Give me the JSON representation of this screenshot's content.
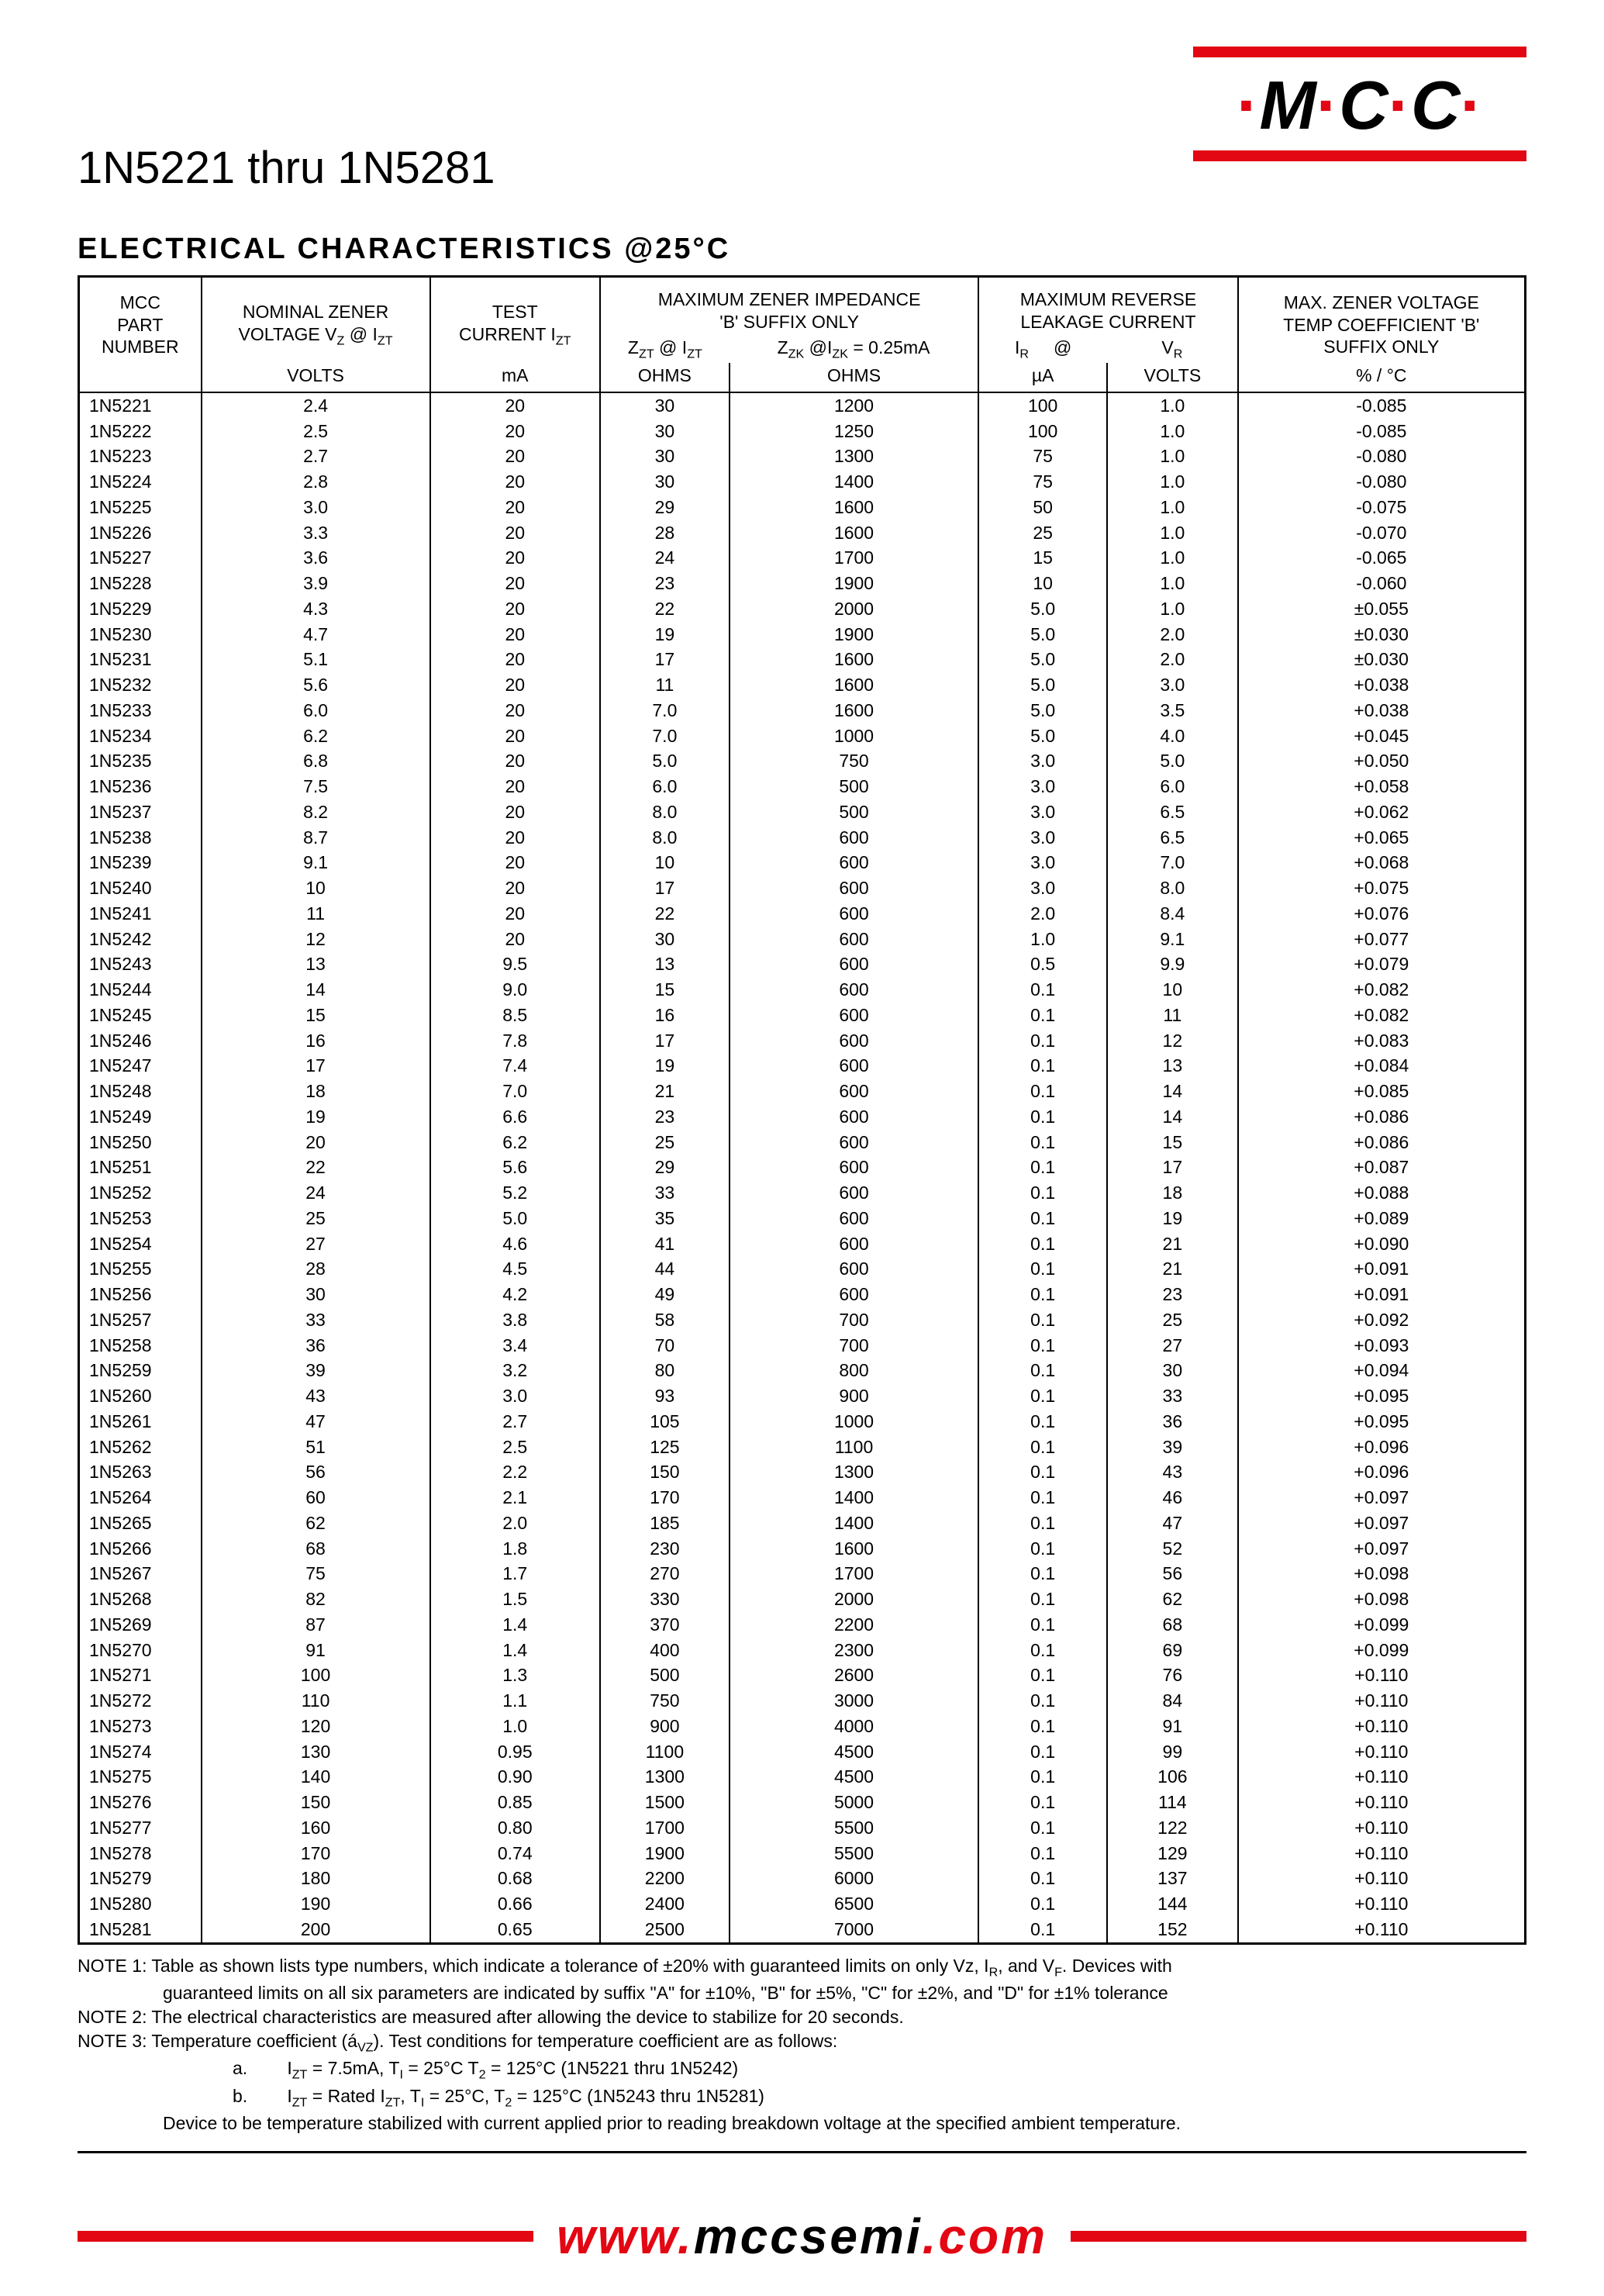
{
  "title": "1N5221 thru 1N5281",
  "logo": "M·C·C·",
  "section_heading": "ELECTRICAL CHARACTERISTICS @25°C",
  "footer_url_prefix": "www.",
  "footer_url_main": "mccsemi",
  "footer_url_suffix": ".com",
  "table": {
    "headers": {
      "col1_l1": "MCC",
      "col1_l2": "PART",
      "col1_l3": "NUMBER",
      "col1_unit": "",
      "col2_l1": "NOMINAL ZENER",
      "col2_l2": "VOLTAGE V",
      "col2_sub": "Z",
      "col2_l2b": " @ I",
      "col2_sub2": "ZT",
      "col2_unit": "VOLTS",
      "col3_l1": "TEST",
      "col3_l2": "CURRENT I",
      "col3_sub": "ZT",
      "col3_unit": "mA",
      "col4_l1": "MAXIMUM ZENER IMPEDANCE",
      "col4_l2": "'B' SUFFIX ONLY",
      "col4a_l3": "Z",
      "col4a_sub1": "ZT",
      "col4a_mid": " @ I",
      "col4a_sub2": "ZT",
      "col4a_unit": "OHMS",
      "col4b_l3": "Z",
      "col4b_sub1": "ZK",
      "col4b_mid": " @I",
      "col4b_sub2": "ZK",
      "col4b_tail": " = 0.25mA",
      "col4b_unit": "OHMS",
      "col5_l1": "MAXIMUM REVERSE",
      "col5_l2": "LEAKAGE CURRENT",
      "col5a_l3": "I",
      "col5a_sub": "R",
      "col5_mid": "@",
      "col5b_l3": "V",
      "col5b_sub": "R",
      "col5a_unit": "µA",
      "col5b_unit": "VOLTS",
      "col6_l1": "MAX. ZENER VOLTAGE",
      "col6_l2": "TEMP COEFFICIENT 'B'",
      "col6_l3": "SUFFIX ONLY",
      "col6_unit": "% / °C"
    },
    "rows": [
      [
        "1N5221",
        "2.4",
        "20",
        "30",
        "1200",
        "100",
        "1.0",
        "-0.085"
      ],
      [
        "1N5222",
        "2.5",
        "20",
        "30",
        "1250",
        "100",
        "1.0",
        "-0.085"
      ],
      [
        "1N5223",
        "2.7",
        "20",
        "30",
        "1300",
        "75",
        "1.0",
        "-0.080"
      ],
      [
        "1N5224",
        "2.8",
        "20",
        "30",
        "1400",
        "75",
        "1.0",
        "-0.080"
      ],
      [
        "1N5225",
        "3.0",
        "20",
        "29",
        "1600",
        "50",
        "1.0",
        "-0.075"
      ],
      [
        "1N5226",
        "3.3",
        "20",
        "28",
        "1600",
        "25",
        "1.0",
        "-0.070"
      ],
      [
        "1N5227",
        "3.6",
        "20",
        "24",
        "1700",
        "15",
        "1.0",
        "-0.065"
      ],
      [
        "1N5228",
        "3.9",
        "20",
        "23",
        "1900",
        "10",
        "1.0",
        "-0.060"
      ],
      [
        "1N5229",
        "4.3",
        "20",
        "22",
        "2000",
        "5.0",
        "1.0",
        "±0.055"
      ],
      [
        "1N5230",
        "4.7",
        "20",
        "19",
        "1900",
        "5.0",
        "2.0",
        "±0.030"
      ],
      [
        "1N5231",
        "5.1",
        "20",
        "17",
        "1600",
        "5.0",
        "2.0",
        "±0.030"
      ],
      [
        "1N5232",
        "5.6",
        "20",
        "11",
        "1600",
        "5.0",
        "3.0",
        "+0.038"
      ],
      [
        "1N5233",
        "6.0",
        "20",
        "7.0",
        "1600",
        "5.0",
        "3.5",
        "+0.038"
      ],
      [
        "1N5234",
        "6.2",
        "20",
        "7.0",
        "1000",
        "5.0",
        "4.0",
        "+0.045"
      ],
      [
        "1N5235",
        "6.8",
        "20",
        "5.0",
        "750",
        "3.0",
        "5.0",
        "+0.050"
      ],
      [
        "1N5236",
        "7.5",
        "20",
        "6.0",
        "500",
        "3.0",
        "6.0",
        "+0.058"
      ],
      [
        "1N5237",
        "8.2",
        "20",
        "8.0",
        "500",
        "3.0",
        "6.5",
        "+0.062"
      ],
      [
        "1N5238",
        "8.7",
        "20",
        "8.0",
        "600",
        "3.0",
        "6.5",
        "+0.065"
      ],
      [
        "1N5239",
        "9.1",
        "20",
        "10",
        "600",
        "3.0",
        "7.0",
        "+0.068"
      ],
      [
        "1N5240",
        "10",
        "20",
        "17",
        "600",
        "3.0",
        "8.0",
        "+0.075"
      ],
      [
        "1N5241",
        "11",
        "20",
        "22",
        "600",
        "2.0",
        "8.4",
        "+0.076"
      ],
      [
        "1N5242",
        "12",
        "20",
        "30",
        "600",
        "1.0",
        "9.1",
        "+0.077"
      ],
      [
        "1N5243",
        "13",
        "9.5",
        "13",
        "600",
        "0.5",
        "9.9",
        "+0.079"
      ],
      [
        "1N5244",
        "14",
        "9.0",
        "15",
        "600",
        "0.1",
        "10",
        "+0.082"
      ],
      [
        "1N5245",
        "15",
        "8.5",
        "16",
        "600",
        "0.1",
        "11",
        "+0.082"
      ],
      [
        "1N5246",
        "16",
        "7.8",
        "17",
        "600",
        "0.1",
        "12",
        "+0.083"
      ],
      [
        "1N5247",
        "17",
        "7.4",
        "19",
        "600",
        "0.1",
        "13",
        "+0.084"
      ],
      [
        "1N5248",
        "18",
        "7.0",
        "21",
        "600",
        "0.1",
        "14",
        "+0.085"
      ],
      [
        "1N5249",
        "19",
        "6.6",
        "23",
        "600",
        "0.1",
        "14",
        "+0.086"
      ],
      [
        "1N5250",
        "20",
        "6.2",
        "25",
        "600",
        "0.1",
        "15",
        "+0.086"
      ],
      [
        "1N5251",
        "22",
        "5.6",
        "29",
        "600",
        "0.1",
        "17",
        "+0.087"
      ],
      [
        "1N5252",
        "24",
        "5.2",
        "33",
        "600",
        "0.1",
        "18",
        "+0.088"
      ],
      [
        "1N5253",
        "25",
        "5.0",
        "35",
        "600",
        "0.1",
        "19",
        "+0.089"
      ],
      [
        "1N5254",
        "27",
        "4.6",
        "41",
        "600",
        "0.1",
        "21",
        "+0.090"
      ],
      [
        "1N5255",
        "28",
        "4.5",
        "44",
        "600",
        "0.1",
        "21",
        "+0.091"
      ],
      [
        "1N5256",
        "30",
        "4.2",
        "49",
        "600",
        "0.1",
        "23",
        "+0.091"
      ],
      [
        "1N5257",
        "33",
        "3.8",
        "58",
        "700",
        "0.1",
        "25",
        "+0.092"
      ],
      [
        "1N5258",
        "36",
        "3.4",
        "70",
        "700",
        "0.1",
        "27",
        "+0.093"
      ],
      [
        "1N5259",
        "39",
        "3.2",
        "80",
        "800",
        "0.1",
        "30",
        "+0.094"
      ],
      [
        "1N5260",
        "43",
        "3.0",
        "93",
        "900",
        "0.1",
        "33",
        "+0.095"
      ],
      [
        "1N5261",
        "47",
        "2.7",
        "105",
        "1000",
        "0.1",
        "36",
        "+0.095"
      ],
      [
        "1N5262",
        "51",
        "2.5",
        "125",
        "1100",
        "0.1",
        "39",
        "+0.096"
      ],
      [
        "1N5263",
        "56",
        "2.2",
        "150",
        "1300",
        "0.1",
        "43",
        "+0.096"
      ],
      [
        "1N5264",
        "60",
        "2.1",
        "170",
        "1400",
        "0.1",
        "46",
        "+0.097"
      ],
      [
        "1N5265",
        "62",
        "2.0",
        "185",
        "1400",
        "0.1",
        "47",
        "+0.097"
      ],
      [
        "1N5266",
        "68",
        "1.8",
        "230",
        "1600",
        "0.1",
        "52",
        "+0.097"
      ],
      [
        "1N5267",
        "75",
        "1.7",
        "270",
        "1700",
        "0.1",
        "56",
        "+0.098"
      ],
      [
        "1N5268",
        "82",
        "1.5",
        "330",
        "2000",
        "0.1",
        "62",
        "+0.098"
      ],
      [
        "1N5269",
        "87",
        "1.4",
        "370",
        "2200",
        "0.1",
        "68",
        "+0.099"
      ],
      [
        "1N5270",
        "91",
        "1.4",
        "400",
        "2300",
        "0.1",
        "69",
        "+0.099"
      ],
      [
        "1N5271",
        "100",
        "1.3",
        "500",
        "2600",
        "0.1",
        "76",
        "+0.110"
      ],
      [
        "1N5272",
        "110",
        "1.1",
        "750",
        "3000",
        "0.1",
        "84",
        "+0.110"
      ],
      [
        "1N5273",
        "120",
        "1.0",
        "900",
        "4000",
        "0.1",
        "91",
        "+0.110"
      ],
      [
        "1N5274",
        "130",
        "0.95",
        "1100",
        "4500",
        "0.1",
        "99",
        "+0.110"
      ],
      [
        "1N5275",
        "140",
        "0.90",
        "1300",
        "4500",
        "0.1",
        "106",
        "+0.110"
      ],
      [
        "1N5276",
        "150",
        "0.85",
        "1500",
        "5000",
        "0.1",
        "114",
        "+0.110"
      ],
      [
        "1N5277",
        "160",
        "0.80",
        "1700",
        "5500",
        "0.1",
        "122",
        "+0.110"
      ],
      [
        "1N5278",
        "170",
        "0.74",
        "1900",
        "5500",
        "0.1",
        "129",
        "+0.110"
      ],
      [
        "1N5279",
        "180",
        "0.68",
        "2200",
        "6000",
        "0.1",
        "137",
        "+0.110"
      ],
      [
        "1N5280",
        "190",
        "0.66",
        "2400",
        "6500",
        "0.1",
        "144",
        "+0.110"
      ],
      [
        "1N5281",
        "200",
        "0.65",
        "2500",
        "7000",
        "0.1",
        "152",
        "+0.110"
      ]
    ]
  },
  "notes": {
    "n1a": "NOTE 1: Table as shown lists type numbers, which indicate a tolerance of ±20% with guaranteed limits on only Vz, I",
    "n1a_sub": "R",
    "n1a_tail": ", and V",
    "n1a_sub2": "F",
    "n1a_tail2": ". Devices with",
    "n1b": "guaranteed limits on all six parameters are  indicated by suffix \"A\" for ±10%, \"B\" for ±5%, \"C\" for ±2%, and \"D\" for ±1% tolerance",
    "n2": "NOTE 2: The electrical characteristics are measured after allowing the device to stabilize for 20 seconds.",
    "n3": "NOTE 3: Temperature coefficient (á",
    "n3_sub": "VZ",
    "n3_tail": "). Test conditions for temperature coefficient are as follows:",
    "n3a_label": "a.",
    "n3a": "I",
    "n3a_sub": "ZT",
    "n3a_body": " = 7.5mA, T",
    "n3a_sub2": "I",
    "n3a_body2": " = 25°C T",
    "n3a_sub3": "2",
    "n3a_body3": " = 125°C (1N5221 thru 1N5242)",
    "n3b_label": "b.",
    "n3b": "I",
    "n3b_sub": "ZT",
    "n3b_body": " = Rated I",
    "n3b_sub2": "ZT",
    "n3b_body2": ", T",
    "n3b_sub3": "I",
    "n3b_body3": " = 25°C, T",
    "n3b_sub4": "2",
    "n3b_body4": " = 125°C (1N5243 thru 1N5281)",
    "n3c": "Device to be temperature stabilized with current applied prior to reading breakdown voltage at the specified ambient temperature."
  }
}
